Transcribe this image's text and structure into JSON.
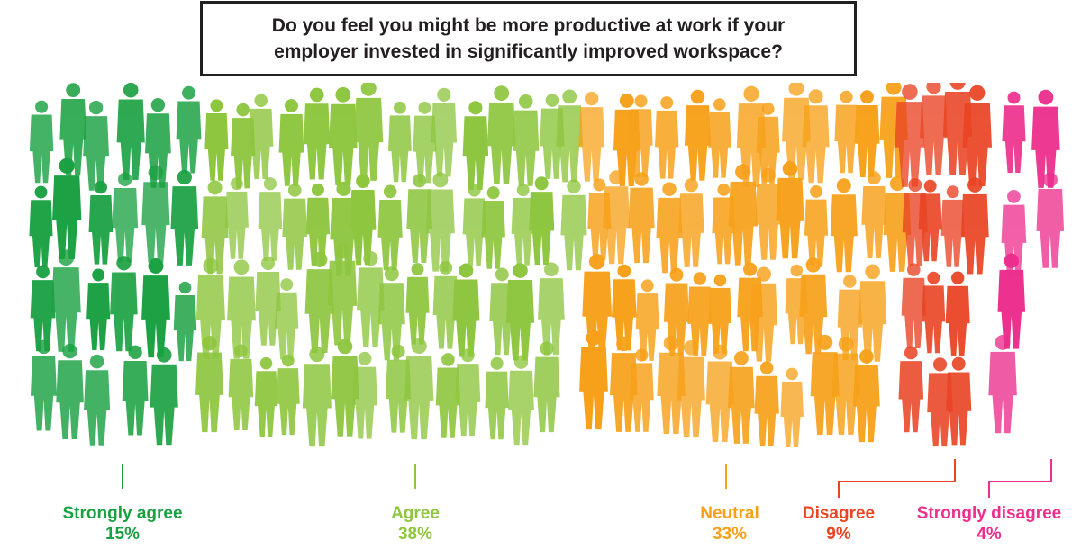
{
  "title": "Do you feel you might be more productive at work if your\nemployer invested in significantly improved workspace?",
  "chart_data": {
    "type": "pictogram",
    "title": "Do you feel you might be more productive at work if your employer invested in significantly improved workspace?",
    "categories": [
      "Strongly agree",
      "Agree",
      "Neutral",
      "Disagree",
      "Strongly disagree"
    ],
    "values": [
      15,
      38,
      33,
      9,
      4
    ],
    "value_labels": [
      "15%",
      "38%",
      "33%",
      "9%",
      "4%"
    ],
    "unit": "%",
    "colors": [
      "#1aa142",
      "#8ec63f",
      "#f7a11a",
      "#e94424",
      "#ec2e8c"
    ]
  }
}
